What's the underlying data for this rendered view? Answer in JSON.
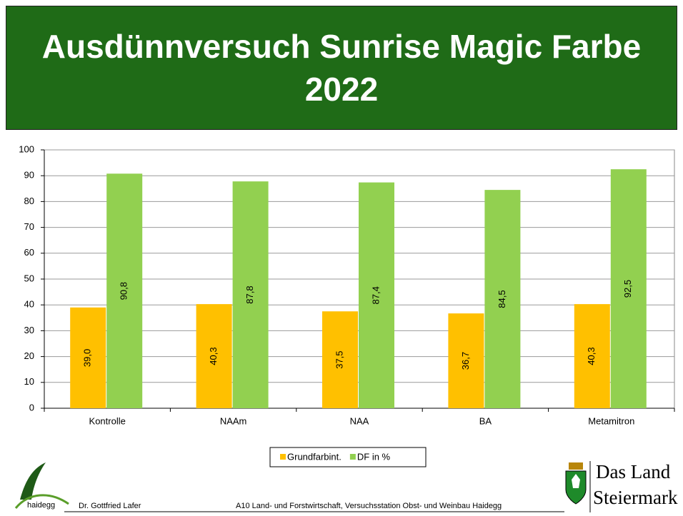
{
  "chart_data": {
    "type": "bar",
    "title": "Ausdünnversuch Sunrise Magic Farbe 2022",
    "categories": [
      "Kontrolle",
      "NAAm",
      "NAA",
      "BA",
      "Metamitron"
    ],
    "series": [
      {
        "name": "Grundfarbint.",
        "color": "#ffc000",
        "values": [
          39.0,
          40.3,
          37.5,
          36.7,
          40.3
        ],
        "value_labels": [
          "39,0",
          "40,3",
          "37,5",
          "36,7",
          "40,3"
        ]
      },
      {
        "name": "DF in %",
        "color": "#92d050",
        "values": [
          90.8,
          87.8,
          87.4,
          84.5,
          92.5
        ],
        "value_labels": [
          "90,8",
          "87,8",
          "87,4",
          "84,5",
          "92,5"
        ]
      }
    ],
    "ylim": [
      0,
      100
    ],
    "yticks": [
      0,
      10,
      20,
      30,
      40,
      50,
      60,
      70,
      80,
      90,
      100
    ],
    "grid": true,
    "legend": "bottom"
  },
  "footer": {
    "logo_text": "haidegg",
    "author": "Dr. Gottfried Lafer",
    "institution": "A10 Land- und Forstwirtschaft, Versuchsstation Obst- und Weinbau Haidegg",
    "brand_line1": "Das Land",
    "brand_line2": "Steiermark"
  }
}
